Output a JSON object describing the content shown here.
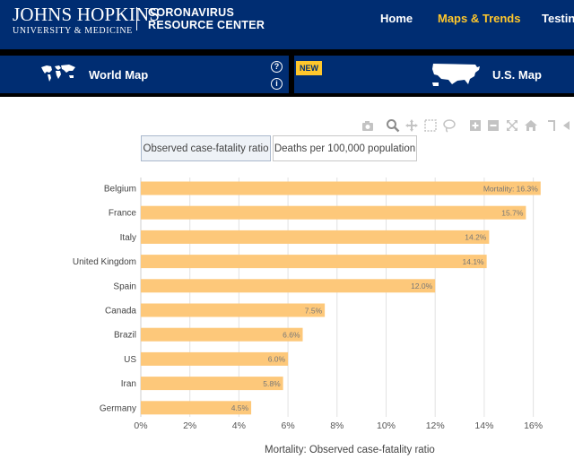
{
  "header": {
    "logo_name": "JOHNS HOPKINS",
    "logo_sub": "UNIVERSITY & MEDICINE",
    "center_line1": "CORONAVIRUS",
    "center_line2": "RESOURCE CENTER",
    "nav": {
      "home": "Home",
      "maps_trends": "Maps & Trends",
      "testing": "Testin"
    }
  },
  "mapbar": {
    "world_map": "World Map",
    "us_map": "U.S. Map",
    "new_badge": "NEW",
    "help_glyph": "?",
    "info_glyph": "i"
  },
  "toolbar": {
    "icons": [
      "camera-icon",
      "zoom-icon",
      "pan-icon",
      "box-select-icon",
      "lasso-icon",
      "zoom-in-icon",
      "zoom-out-icon",
      "autoscale-icon",
      "home-icon",
      "spike-lines-icon",
      "hover-closest-icon"
    ]
  },
  "toggles": {
    "cfr": "Observed case-fatality ratio",
    "deaths": "Deaths per 100,000 population"
  },
  "colors": {
    "navy": "#002d72",
    "gold": "#ffc72c",
    "bar": "#fdc87a",
    "grid": "#e0e0e0"
  },
  "chart_data": {
    "type": "bar",
    "orientation": "horizontal",
    "categories": [
      "Belgium",
      "France",
      "Italy",
      "United Kingdom",
      "Spain",
      "Canada",
      "Brazil",
      "US",
      "Iran",
      "Germany"
    ],
    "values": [
      16.3,
      15.7,
      14.2,
      14.1,
      12.0,
      7.5,
      6.6,
      6.0,
      5.8,
      4.5
    ],
    "labels": [
      "Mortality: 16.3%",
      "15.7%",
      "14.2%",
      "14.1%",
      "12.0%",
      "7.5%",
      "6.6%",
      "6.0%",
      "5.8%",
      "4.5%"
    ],
    "xticks": [
      "0%",
      "2%",
      "4%",
      "6%",
      "8%",
      "10%",
      "12%",
      "14%",
      "16%"
    ],
    "xlim": [
      0,
      16.4
    ],
    "xlabel": "Mortality: Observed case-fatality ratio",
    "grid": true
  }
}
